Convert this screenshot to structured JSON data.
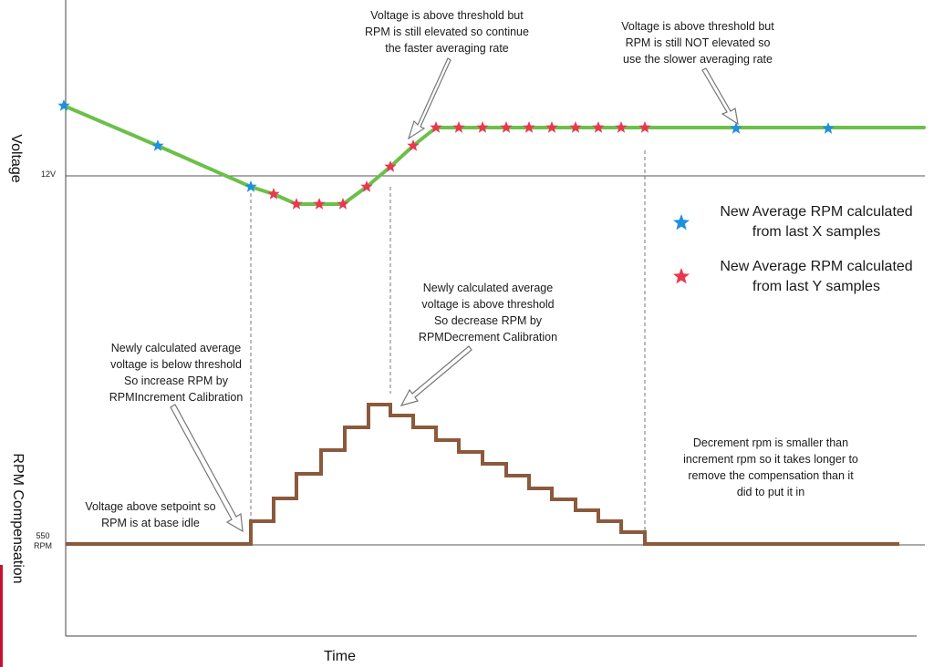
{
  "axes": {
    "voltage_label": "Voltage",
    "rpm_label": "RPM Compensation",
    "time_label": "Time",
    "voltage_tick": "12V",
    "rpm_tick": "550\nRPM"
  },
  "annotations": {
    "top_middle": "Voltage is above threshold but\nRPM is still elevated so continue\nthe faster averaging rate",
    "top_right": "Voltage is above threshold but\nRPM is still NOT elevated so\nuse the slower averaging rate",
    "middle_decrease": "Newly calculated average\nvoltage is above threshold\nSo decrease RPM by\nRPMDecrement Calibration",
    "left_increase": "Newly calculated average\nvoltage is below threshold\nSo increase RPM by\nRPMIncrement Calibration",
    "base_idle": "Voltage above setpoint so\nRPM is at base idle",
    "decrement_note": "Decrement rpm is smaller than\nincrement rpm so it takes longer to\nremove the compensation than it\ndid to put it in"
  },
  "legend": {
    "blue_label": "New Average RPM calculated\nfrom last X samples",
    "red_label": "New Average RPM calculated\nfrom last Y samples"
  },
  "colors": {
    "voltage_line": "#6cc04a",
    "rpm_line": "#8b5a3c",
    "blue_star": "#1f8fe0",
    "red_star": "#e8384f",
    "axis": "#333333"
  }
}
